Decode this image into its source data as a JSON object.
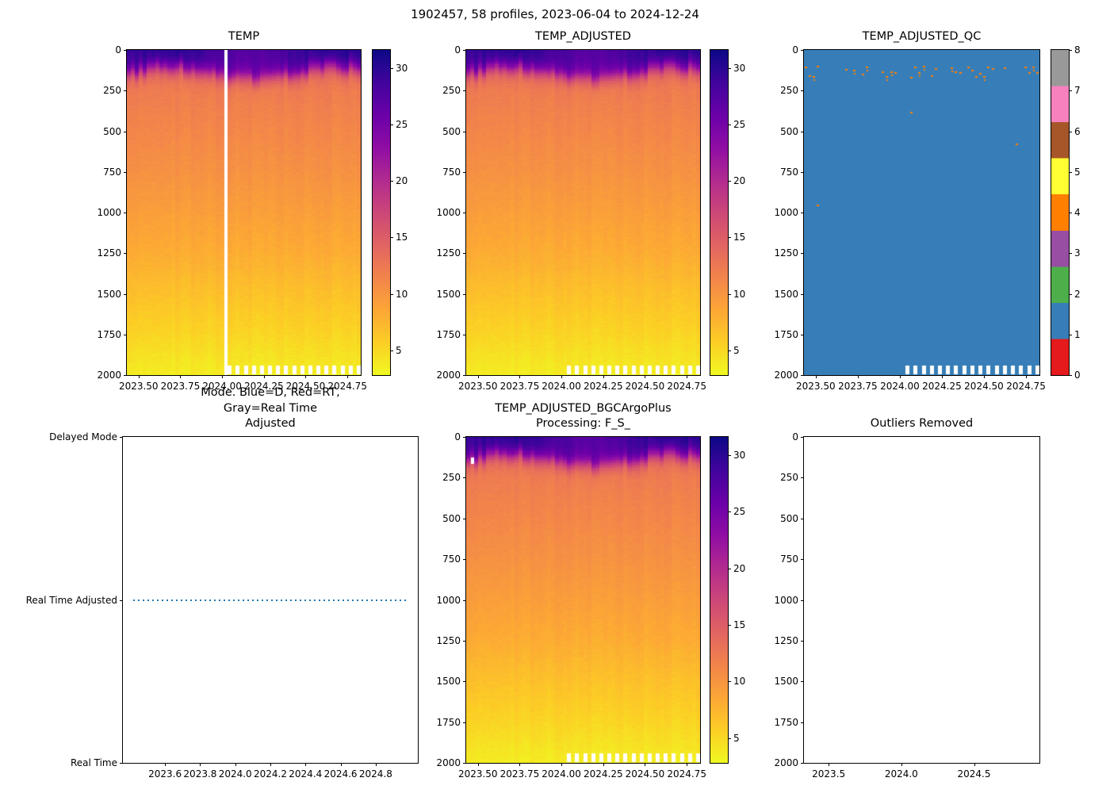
{
  "figure": {
    "suptitle": "1902457, 58 profiles, 2023-06-04 to 2024-12-24"
  },
  "colors": {
    "plasma_stops": [
      "#0d0887",
      "#41049d",
      "#6a00a8",
      "#8f0da4",
      "#b12a90",
      "#cc4778",
      "#e16462",
      "#f2844b",
      "#fca636",
      "#fcce25",
      "#f0f921"
    ],
    "qc_palette": [
      "#e41a1c",
      "#377eb8",
      "#4daf4a",
      "#984ea3",
      "#ff7f00",
      "#ffff33",
      "#a65628",
      "#f781bf",
      "#999999"
    ],
    "mode_line": "#1f77b4",
    "missing": "#ffffff"
  },
  "chart_data": [
    {
      "id": "temp",
      "type": "heatmap",
      "kind": "temp",
      "title": "TEMP",
      "n_profiles": 58,
      "x_range": [
        2023.43,
        2024.83
      ],
      "y_range": [
        0,
        2000
      ],
      "x_ticks": [
        2023.5,
        2023.75,
        2024.0,
        2024.25,
        2024.5,
        2024.75
      ],
      "x_tick_labels": [
        "2023.50",
        "2023.75",
        "2024.00",
        "2024.25",
        "2024.50",
        "2024.75"
      ],
      "y_ticks": [
        0,
        250,
        500,
        750,
        1000,
        1250,
        1500,
        1750,
        2000
      ],
      "y_tick_labels": [
        "0",
        "250",
        "500",
        "750",
        "1000",
        "1250",
        "1500",
        "1750",
        "2000"
      ],
      "colorbar": {
        "palette": "plasma_r",
        "vmin": 2.8,
        "vmax": 31.6,
        "ticks": [
          5,
          10,
          15,
          20,
          25,
          30
        ],
        "tick_labels": [
          "5",
          "10",
          "15",
          "20",
          "25",
          "30"
        ]
      },
      "depth_profile_degC": [
        [
          0,
          13.2
        ],
        [
          100,
          12.8
        ],
        [
          250,
          12.1
        ],
        [
          500,
          11.2
        ],
        [
          750,
          10.3
        ],
        [
          1000,
          9.2
        ],
        [
          1250,
          8.1
        ],
        [
          1500,
          6.6
        ],
        [
          1750,
          5.2
        ],
        [
          2000,
          3.6
        ]
      ],
      "surface": {
        "sst_base": 28.8,
        "sst_amp": 1.6,
        "sst_phase": 0.42,
        "mld_base": 140,
        "mld_amp": 35,
        "mld_phase": 0.95,
        "mld_width": 28
      },
      "missing_columns": [
        24
      ],
      "bottom_gaps": {
        "from": 25,
        "step": 2,
        "depth": 1940
      }
    },
    {
      "id": "temp_adjusted",
      "type": "heatmap",
      "kind": "temp",
      "title": "TEMP_ADJUSTED",
      "n_profiles": 58,
      "x_range": [
        2023.43,
        2024.83
      ],
      "y_range": [
        0,
        2000
      ],
      "x_ticks": [
        2023.5,
        2023.75,
        2024.0,
        2024.25,
        2024.5,
        2024.75
      ],
      "x_tick_labels": [
        "2023.50",
        "2023.75",
        "2024.00",
        "2024.25",
        "2024.50",
        "2024.75"
      ],
      "y_ticks": [
        0,
        250,
        500,
        750,
        1000,
        1250,
        1500,
        1750,
        2000
      ],
      "y_tick_labels": [
        "0",
        "250",
        "500",
        "750",
        "1000",
        "1250",
        "1500",
        "1750",
        "2000"
      ],
      "colorbar": {
        "palette": "plasma_r",
        "vmin": 2.8,
        "vmax": 31.6,
        "ticks": [
          5,
          10,
          15,
          20,
          25,
          30
        ],
        "tick_labels": [
          "5",
          "10",
          "15",
          "20",
          "25",
          "30"
        ]
      },
      "depth_profile_degC": [
        [
          0,
          13.2
        ],
        [
          100,
          12.8
        ],
        [
          250,
          12.1
        ],
        [
          500,
          11.2
        ],
        [
          750,
          10.3
        ],
        [
          1000,
          9.2
        ],
        [
          1250,
          8.1
        ],
        [
          1500,
          6.6
        ],
        [
          1750,
          5.2
        ],
        [
          2000,
          3.6
        ]
      ],
      "surface": {
        "sst_base": 28.8,
        "sst_amp": 1.6,
        "sst_phase": 0.42,
        "mld_base": 140,
        "mld_amp": 35,
        "mld_phase": 0.95,
        "mld_width": 28
      },
      "bottom_gaps": {
        "from": 25,
        "step": 2,
        "depth": 1940
      }
    },
    {
      "id": "temp_adjusted_qc",
      "type": "heatmap",
      "kind": "qc",
      "title": "TEMP_ADJUSTED_QC",
      "n_profiles": 58,
      "x_range": [
        2023.43,
        2024.83
      ],
      "y_range": [
        0,
        2000
      ],
      "x_ticks": [
        2023.5,
        2023.75,
        2024.0,
        2024.25,
        2024.5,
        2024.75
      ],
      "x_tick_labels": [
        "2023.50",
        "2023.75",
        "2024.00",
        "2024.25",
        "2024.50",
        "2024.75"
      ],
      "y_ticks": [
        0,
        250,
        500,
        750,
        1000,
        1250,
        1500,
        1750,
        2000
      ],
      "y_tick_labels": [
        "0",
        "250",
        "500",
        "750",
        "1000",
        "1250",
        "1500",
        "1750",
        "2000"
      ],
      "colorbar": {
        "palette": "qc",
        "ticks": [
          0,
          1,
          2,
          3,
          4,
          5,
          6,
          7,
          8
        ],
        "tick_labels": [
          "0",
          "1",
          "2",
          "3",
          "4",
          "5",
          "6",
          "7",
          "8"
        ]
      },
      "base_qc": 1,
      "speck_qc": 4,
      "speck_fraction": 0.55,
      "speck_depth_range": [
        95,
        165
      ],
      "deep_anomalies": [
        [
          3,
          950
        ],
        [
          26,
          380
        ],
        [
          52,
          575
        ]
      ],
      "bottom_gaps": {
        "from": 25,
        "step": 2,
        "depth": 1940
      }
    },
    {
      "id": "mode",
      "type": "line",
      "kind": "mode",
      "title": "Mode. Blue=D, Red=RT,\nGray=Real Time Adjusted",
      "x_range": [
        2023.36,
        2025.04
      ],
      "x_ticks": [
        2023.6,
        2023.8,
        2024.0,
        2024.2,
        2024.4,
        2024.6,
        2024.8
      ],
      "x_tick_labels": [
        "2023.6",
        "2023.8",
        "2024.0",
        "2024.2",
        "2024.4",
        "2024.6",
        "2024.8"
      ],
      "y_tick_labels": [
        "Delayed Mode",
        "Real Time Adjusted",
        "Real Time"
      ],
      "line": {
        "value": "Real Time Adjusted",
        "level_fraction": 0.5,
        "x_start": 2023.42,
        "x_end": 2024.98,
        "style": "dotted"
      }
    },
    {
      "id": "bgc",
      "type": "heatmap",
      "kind": "temp",
      "title": "TEMP_ADJUSTED_BGCArgoPlus\nProcessing: F_S_",
      "n_profiles": 58,
      "x_range": [
        2023.43,
        2024.83
      ],
      "y_range": [
        0,
        2000
      ],
      "x_ticks": [
        2023.5,
        2023.75,
        2024.0,
        2024.25,
        2024.5,
        2024.75
      ],
      "x_tick_labels": [
        "2023.50",
        "2023.75",
        "2024.00",
        "2024.25",
        "2024.50",
        "2024.75"
      ],
      "y_ticks": [
        0,
        250,
        500,
        750,
        1000,
        1250,
        1500,
        1750,
        2000
      ],
      "y_tick_labels": [
        "0",
        "250",
        "500",
        "750",
        "1000",
        "1250",
        "1500",
        "1750",
        "2000"
      ],
      "colorbar": {
        "palette": "plasma_r",
        "vmin": 2.8,
        "vmax": 31.6,
        "ticks": [
          5,
          10,
          15,
          20,
          25,
          30
        ],
        "tick_labels": [
          "5",
          "10",
          "15",
          "20",
          "25",
          "30"
        ]
      },
      "depth_profile_degC": [
        [
          0,
          13.2
        ],
        [
          100,
          12.8
        ],
        [
          250,
          12.1
        ],
        [
          500,
          11.2
        ],
        [
          750,
          10.3
        ],
        [
          1000,
          9.2
        ],
        [
          1250,
          8.1
        ],
        [
          1500,
          6.6
        ],
        [
          1750,
          5.2
        ],
        [
          2000,
          3.6
        ]
      ],
      "surface": {
        "sst_base": 28.8,
        "sst_amp": 1.6,
        "sst_phase": 0.42,
        "mld_base": 140,
        "mld_amp": 35,
        "mld_phase": 0.95,
        "mld_width": 28
      },
      "missing_cells": [
        [
          1,
          125,
          165
        ]
      ],
      "bottom_gaps": {
        "from": 25,
        "step": 2,
        "depth": 1940
      }
    },
    {
      "id": "outliers",
      "type": "empty",
      "kind": "empty",
      "title": "Outliers Removed",
      "x_range": [
        2023.33,
        2024.95
      ],
      "y_range": [
        0,
        2000
      ],
      "x_ticks": [
        2023.5,
        2024.0,
        2024.5
      ],
      "x_tick_labels": [
        "2023.5",
        "2024.0",
        "2024.5"
      ],
      "y_ticks": [
        0,
        250,
        500,
        750,
        1000,
        1250,
        1500,
        1750,
        2000
      ],
      "y_tick_labels": [
        "0",
        "250",
        "500",
        "750",
        "1000",
        "1250",
        "1500",
        "1750",
        "2000"
      ]
    }
  ]
}
